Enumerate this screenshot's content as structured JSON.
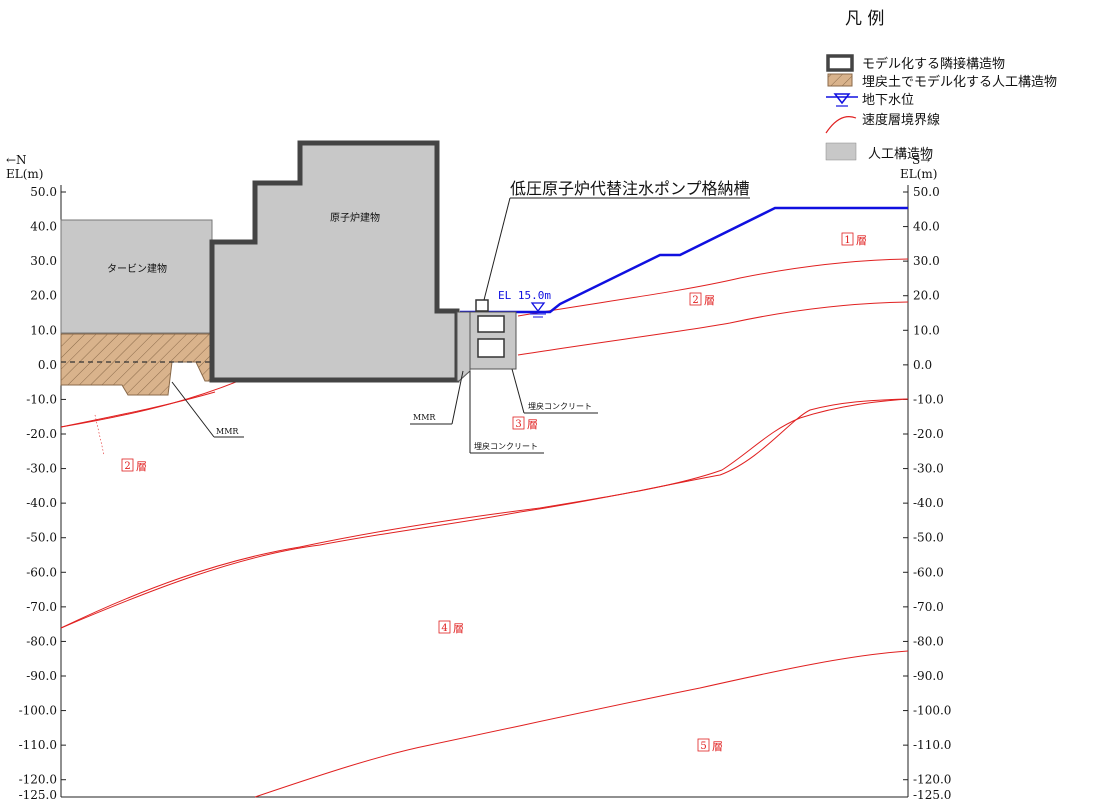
{
  "legend": {
    "title": "凡 例",
    "items": [
      {
        "key": "adjacent",
        "label": "モデル化する隣接構造物"
      },
      {
        "key": "backfill",
        "label": "埋戻土でモデル化する人工構造物"
      },
      {
        "key": "water",
        "label": "地下水位"
      },
      {
        "key": "boundary",
        "label": "速度層境界線"
      },
      {
        "key": "artificial",
        "label": "人工構造物"
      }
    ]
  },
  "axes": {
    "left_dir": "←N",
    "right_dir": "S→",
    "unit": "EL(m)",
    "ticks": [
      "50.0",
      "40.0",
      "30.0",
      "20.0",
      "10.0",
      "0.0",
      "-10.0",
      "-20.0",
      "-30.0",
      "-40.0",
      "-50.0",
      "-60.0",
      "-70.0",
      "-80.0",
      "-90.0",
      "-100.0",
      "-110.0",
      "-120.0",
      "-125.0"
    ],
    "ymax": 50,
    "ymin": -125
  },
  "labels": {
    "title": "低圧原子炉代替注水ポンプ格納槽",
    "reactor": "原子炉建物",
    "turbine": "タービン建物",
    "el": "EL 15.0m",
    "mmr_left": "MMR",
    "mmr_mid": "MMR",
    "backfill_concrete_1": "埋戻コンクリート",
    "backfill_concrete_2": "埋戻コンクリート"
  },
  "layers": [
    {
      "num": "1",
      "text": "層"
    },
    {
      "num": "2",
      "text": "層"
    },
    {
      "num": "2",
      "text": "層"
    },
    {
      "num": "3",
      "text": "層"
    },
    {
      "num": "4",
      "text": "層"
    },
    {
      "num": "5",
      "text": "層"
    }
  ],
  "colors": {
    "boundary": "#e02020",
    "water": "#1010e0",
    "building_fill": "#c8c8c8",
    "building_edge": "#444444",
    "backfill": "#c8a080"
  }
}
